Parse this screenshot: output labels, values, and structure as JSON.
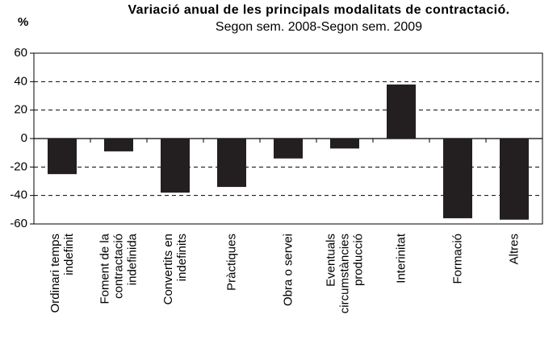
{
  "chart_data": {
    "type": "bar",
    "title": "Variació anual de les principals modalitats de contractació.",
    "subtitle": "Segon sem. 2008-Segon sem. 2009",
    "y_label": "%",
    "categories": [
      "Ordinari temps indefinit",
      "Foment de la contractació indefinida",
      "Convertits en indefinits",
      "Pràctiques",
      "Obra o servei",
      "Eventuals circumstàncies producció",
      "Interinitat",
      "Formació",
      "Altres"
    ],
    "values": [
      -25,
      -9,
      -38,
      -34,
      -14,
      -7,
      38,
      -56,
      -57
    ],
    "color": "#231f20",
    "ylim": [
      -60,
      60
    ],
    "yticks": [
      -60,
      -40,
      -20,
      0,
      20,
      40,
      60
    ],
    "grid": true
  }
}
